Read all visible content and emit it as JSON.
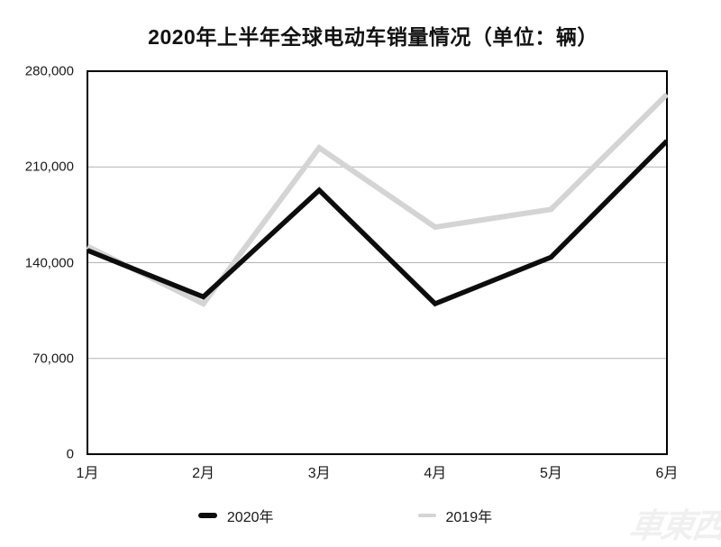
{
  "chart": {
    "title": "2020年上半年全球电动车销量情况（单位：辆）"
  },
  "chart_data": {
    "type": "line",
    "title": "2020年上半年全球电动车销量情况（单位：辆）",
    "xlabel": "",
    "ylabel": "",
    "categories": [
      "1月",
      "2月",
      "3月",
      "4月",
      "5月",
      "6月"
    ],
    "series": [
      {
        "name": "2020年",
        "color": "#0d0d0d",
        "stroke_width": 5.5,
        "values": [
          149000,
          115000,
          193000,
          110000,
          144000,
          229000
        ]
      },
      {
        "name": "2019年",
        "color": "#d4d4d4",
        "stroke_width": 6,
        "values": [
          152000,
          110000,
          224000,
          166000,
          179000,
          263000
        ]
      }
    ],
    "ylim": [
      0,
      280000
    ],
    "yticks": [
      {
        "value": 0,
        "label": "0"
      },
      {
        "value": 70000,
        "label": "70,000"
      },
      {
        "value": 140000,
        "label": "140,000"
      },
      {
        "value": 210000,
        "label": "210,000"
      },
      {
        "value": 280000,
        "label": "280,000"
      }
    ],
    "grid": true,
    "gridline_color": "#b3b3b3",
    "border_color": "#000000",
    "legend_position": "bottom"
  },
  "legend": {
    "items": [
      {
        "label": "2020年"
      },
      {
        "label": "2019年"
      }
    ]
  },
  "watermark": {
    "text": "車東西"
  }
}
